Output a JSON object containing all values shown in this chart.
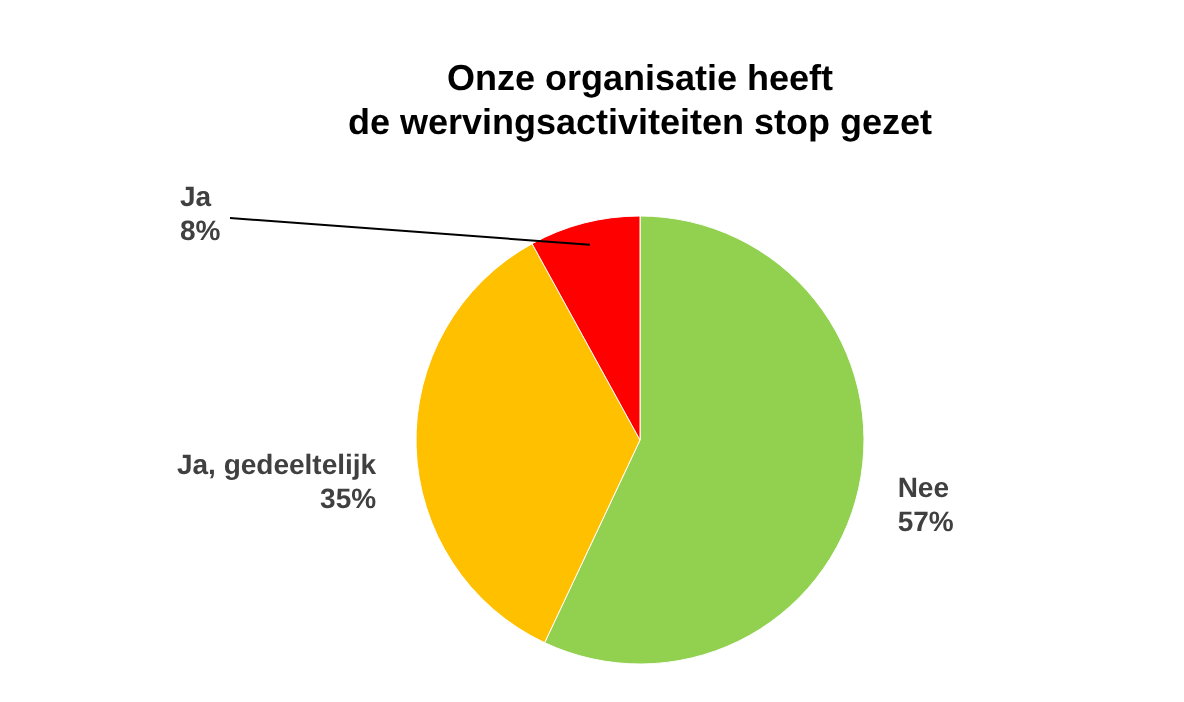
{
  "chart_data": {
    "type": "pie",
    "title": "Onze organisatie heeft\nde wervingsactiviteiten stop gezet",
    "categories": [
      "Nee",
      "Ja, gedeeltelijk",
      "Ja"
    ],
    "values": [
      57,
      35,
      8
    ],
    "value_labels": [
      "57%",
      "35%",
      "8%"
    ],
    "colors": [
      "#92d050",
      "#ffc000",
      "#ff0000"
    ],
    "legend": false
  }
}
